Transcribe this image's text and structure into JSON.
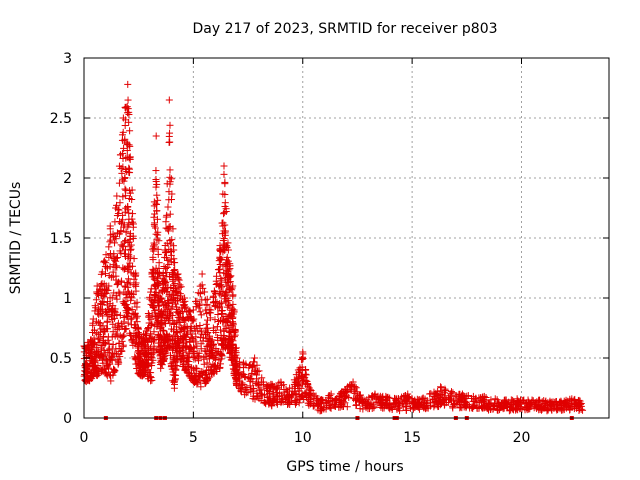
{
  "chart_data": {
    "type": "scatter",
    "title": "Day 217 of 2023, SRMTID for receiver p803",
    "xlabel": "GPS time / hours",
    "ylabel": "SRMTID / TECUs",
    "xlim": [
      0,
      24
    ],
    "ylim": [
      0,
      3
    ],
    "x_ticks": [
      0,
      5,
      10,
      15,
      20
    ],
    "y_ticks": [
      0,
      0.5,
      1,
      1.5,
      2,
      2.5,
      3
    ],
    "x_tick_labels": [
      "0",
      "5",
      "10",
      "15",
      "20"
    ],
    "y_tick_labels": [
      "0",
      "0.5",
      "1",
      "1.5",
      "2",
      "2.5",
      "3"
    ],
    "grid": true,
    "marker": "plus",
    "color": "#e00000",
    "series": [
      {
        "name": "SRMTID",
        "envelope": [
          [
            0.0,
            0.3,
            0.6
          ],
          [
            0.3,
            0.3,
            0.65
          ],
          [
            0.6,
            0.35,
            1.1
          ],
          [
            0.9,
            0.4,
            1.3
          ],
          [
            1.2,
            0.3,
            1.6
          ],
          [
            1.5,
            0.4,
            1.85
          ],
          [
            1.8,
            0.6,
            2.5
          ],
          [
            2.0,
            0.8,
            2.78
          ],
          [
            2.2,
            0.55,
            1.9
          ],
          [
            2.5,
            0.35,
            0.7
          ],
          [
            2.8,
            0.35,
            0.7
          ],
          [
            3.1,
            0.3,
            1.2
          ],
          [
            3.3,
            0.8,
            2.35
          ],
          [
            3.5,
            0.4,
            1.0
          ],
          [
            3.7,
            0.5,
            1.4
          ],
          [
            3.9,
            0.6,
            2.65
          ],
          [
            4.1,
            0.2,
            1.4
          ],
          [
            4.3,
            0.5,
            1.2
          ],
          [
            4.6,
            0.4,
            1.0
          ],
          [
            5.0,
            0.3,
            0.9
          ],
          [
            5.4,
            0.25,
            1.2
          ],
          [
            5.8,
            0.35,
            0.9
          ],
          [
            6.2,
            0.4,
            1.4
          ],
          [
            6.4,
            0.6,
            2.1
          ],
          [
            6.6,
            0.55,
            1.4
          ],
          [
            6.8,
            0.4,
            1.1
          ],
          [
            7.0,
            0.25,
            0.5
          ],
          [
            7.4,
            0.18,
            0.45
          ],
          [
            7.8,
            0.15,
            0.5
          ],
          [
            8.2,
            0.12,
            0.3
          ],
          [
            8.6,
            0.1,
            0.28
          ],
          [
            9.0,
            0.12,
            0.3
          ],
          [
            9.4,
            0.1,
            0.25
          ],
          [
            9.8,
            0.12,
            0.4
          ],
          [
            10.0,
            0.15,
            0.55
          ],
          [
            10.3,
            0.1,
            0.25
          ],
          [
            10.8,
            0.05,
            0.15
          ],
          [
            11.3,
            0.08,
            0.2
          ],
          [
            11.8,
            0.08,
            0.22
          ],
          [
            12.3,
            0.1,
            0.3
          ],
          [
            12.8,
            0.06,
            0.15
          ],
          [
            13.3,
            0.08,
            0.2
          ],
          [
            13.8,
            0.08,
            0.18
          ],
          [
            14.3,
            0.06,
            0.16
          ],
          [
            14.8,
            0.06,
            0.2
          ],
          [
            15.3,
            0.07,
            0.15
          ],
          [
            15.8,
            0.08,
            0.2
          ],
          [
            16.3,
            0.08,
            0.26
          ],
          [
            16.8,
            0.08,
            0.22
          ],
          [
            17.3,
            0.08,
            0.2
          ],
          [
            17.8,
            0.08,
            0.18
          ],
          [
            18.3,
            0.06,
            0.18
          ],
          [
            18.8,
            0.06,
            0.16
          ],
          [
            19.3,
            0.06,
            0.15
          ],
          [
            19.8,
            0.06,
            0.16
          ],
          [
            20.3,
            0.06,
            0.15
          ],
          [
            20.8,
            0.06,
            0.15
          ],
          [
            21.3,
            0.06,
            0.14
          ],
          [
            21.8,
            0.06,
            0.14
          ],
          [
            22.3,
            0.06,
            0.16
          ],
          [
            22.8,
            0.06,
            0.15
          ]
        ],
        "zero_markers_x": [
          1.0,
          3.3,
          3.5,
          3.7,
          12.5,
          14.2,
          14.3,
          17.0,
          17.5,
          22.3
        ]
      }
    ]
  }
}
